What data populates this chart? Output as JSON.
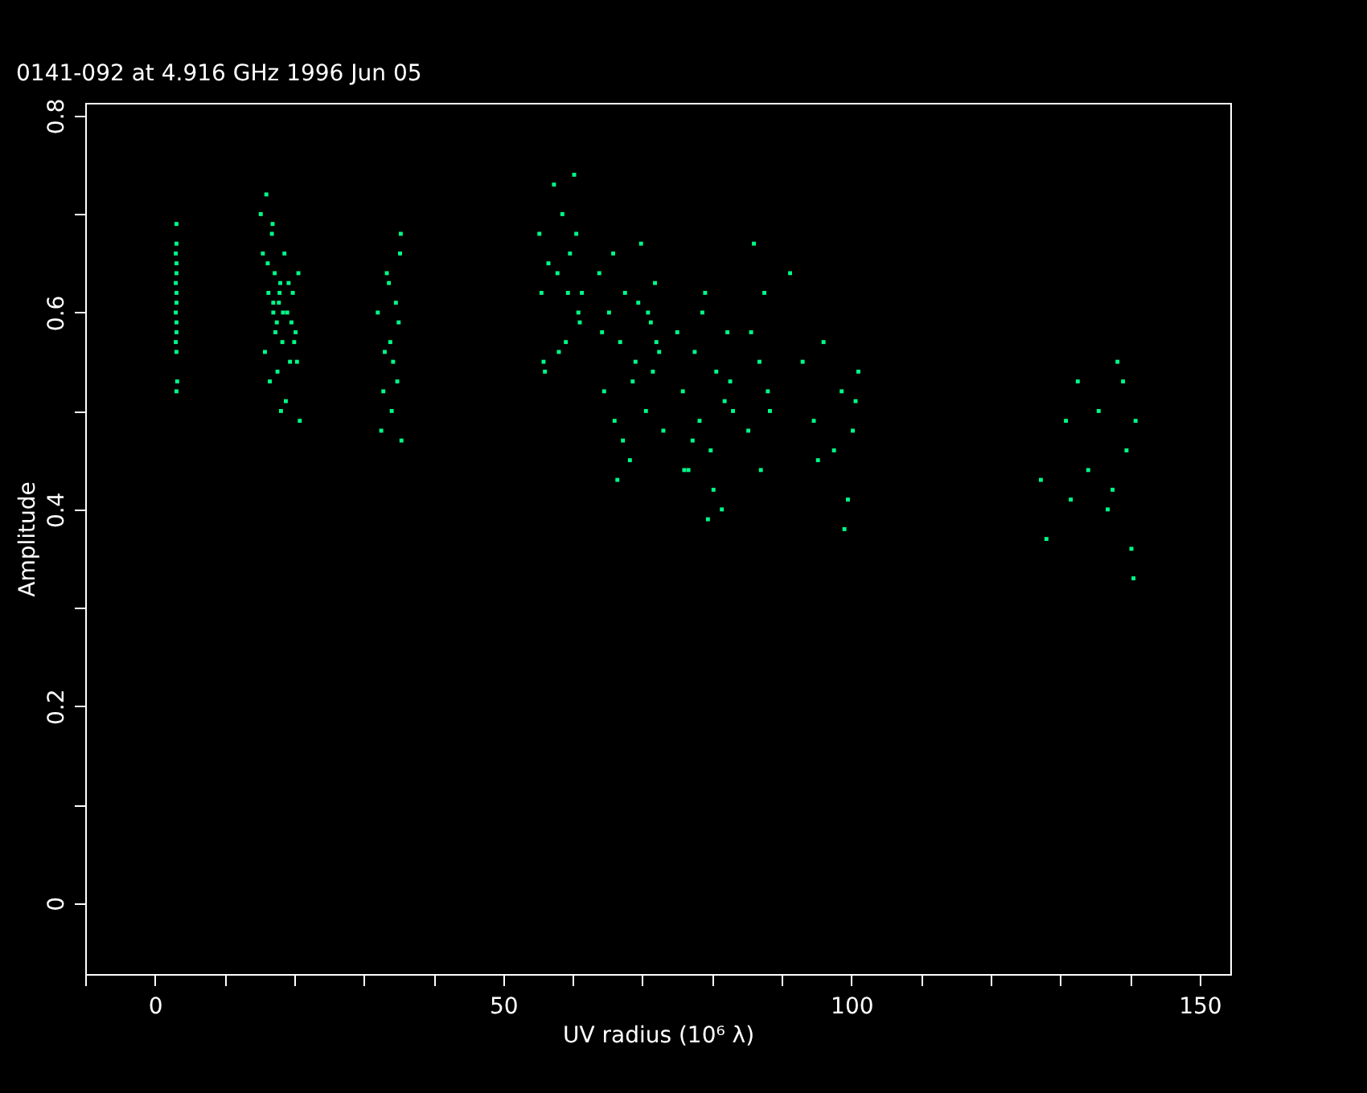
{
  "chart_data": {
    "type": "scatter",
    "title": "0141-092 at 4.916 GHz 1996 Jun 05",
    "xlabel": "UV radius  (10⁶ λ)",
    "ylabel": "Amplitude",
    "xlim": [
      -10,
      154.4
    ],
    "ylim": [
      -0.072,
      0.813
    ],
    "xticks": [
      {
        "value": -10,
        "label": null
      },
      0,
      {
        "value": 10,
        "label": null
      },
      {
        "value": 20,
        "label": null
      },
      {
        "value": 30,
        "label": null
      },
      {
        "value": 40,
        "label": null
      },
      50,
      {
        "value": 60,
        "label": null
      },
      {
        "value": 70,
        "label": null
      },
      {
        "value": 80,
        "label": null
      },
      {
        "value": 90,
        "label": null
      },
      100,
      {
        "value": 110,
        "label": null
      },
      {
        "value": 120,
        "label": null
      },
      {
        "value": 130,
        "label": null
      },
      {
        "value": 140,
        "label": null
      },
      150
    ],
    "yticks": [
      0,
      {
        "value": 0.1,
        "label": null
      },
      0.2,
      {
        "value": 0.3,
        "label": null
      },
      0.4,
      {
        "value": 0.5,
        "label": null
      },
      0.6,
      {
        "value": 0.7,
        "label": null
      },
      0.8
    ],
    "marker": "square",
    "series": [
      {
        "color": "#00ff88",
        "x": [
          3.1,
          3.1,
          3.0,
          3.1,
          3.1,
          3.0,
          3.1,
          3.1,
          3.0,
          3.1,
          3.1,
          3.0,
          3.1,
          3.1,
          3.2,
          15.2,
          15.5,
          16.0,
          16.3,
          16.8,
          17.0,
          17.2,
          17.5,
          17.8,
          18.0,
          18.3,
          18.6,
          19.0,
          19.4,
          19.8,
          20.2,
          20.6,
          15.8,
          16.5,
          17.3,
          17.9,
          18.8,
          19.6,
          20.4,
          16.2,
          17.0,
          18.4,
          19.2,
          20.0,
          17.6,
          18.1,
          16.9,
          20.8,
          32.0,
          32.8,
          33.3,
          33.8,
          34.2,
          34.6,
          35.0,
          35.3,
          32.5,
          33.6,
          34.8,
          35.2,
          33.0,
          34.0,
          35.4,
          55.2,
          55.5,
          56.0,
          57.3,
          57.8,
          58.5,
          59.0,
          59.6,
          60.2,
          60.8,
          61.3,
          56.5,
          58.0,
          59.3,
          60.5,
          61.0,
          55.8,
          63.8,
          64.5,
          65.2,
          66.0,
          66.8,
          67.5,
          68.2,
          69.0,
          69.8,
          70.5,
          71.2,
          71.8,
          72.4,
          73.0,
          64.2,
          66.4,
          68.6,
          70.8,
          72.0,
          65.8,
          67.2,
          69.4,
          71.5,
          75.0,
          75.8,
          76.6,
          77.5,
          78.2,
          79.0,
          79.8,
          80.6,
          81.4,
          82.2,
          83.0,
          76.0,
          78.6,
          80.2,
          81.8,
          77.2,
          82.6,
          79.4,
          85.2,
          86.0,
          86.8,
          87.5,
          88.3,
          85.6,
          87.0,
          88.0,
          91.2,
          93.0,
          94.6,
          96.0,
          97.5,
          98.6,
          99.5,
          100.2,
          101.0,
          95.2,
          99.0,
          100.6,
          127.2,
          128.0,
          130.8,
          132.5,
          134.0,
          135.5,
          136.8,
          138.2,
          139.5,
          140.2,
          140.8,
          137.5,
          139.0,
          131.5,
          140.5
        ],
        "values": [
          0.69,
          0.67,
          0.66,
          0.65,
          0.64,
          0.63,
          0.62,
          0.61,
          0.6,
          0.59,
          0.58,
          0.57,
          0.56,
          0.52,
          0.53,
          0.7,
          0.66,
          0.72,
          0.62,
          0.68,
          0.6,
          0.64,
          0.59,
          0.61,
          0.63,
          0.57,
          0.66,
          0.6,
          0.55,
          0.62,
          0.58,
          0.64,
          0.56,
          0.53,
          0.58,
          0.62,
          0.51,
          0.59,
          0.55,
          0.65,
          0.61,
          0.6,
          0.63,
          0.57,
          0.54,
          0.5,
          0.69,
          0.49,
          0.6,
          0.52,
          0.64,
          0.57,
          0.55,
          0.61,
          0.59,
          0.68,
          0.48,
          0.63,
          0.53,
          0.66,
          0.56,
          0.5,
          0.47,
          0.68,
          0.62,
          0.54,
          0.73,
          0.64,
          0.7,
          0.57,
          0.66,
          0.74,
          0.6,
          0.62,
          0.65,
          0.56,
          0.62,
          0.68,
          0.59,
          0.55,
          0.64,
          0.52,
          0.6,
          0.49,
          0.57,
          0.62,
          0.45,
          0.55,
          0.67,
          0.5,
          0.59,
          0.63,
          0.56,
          0.48,
          0.58,
          0.43,
          0.53,
          0.6,
          0.57,
          0.66,
          0.47,
          0.61,
          0.54,
          0.58,
          0.52,
          0.44,
          0.56,
          0.49,
          0.62,
          0.46,
          0.54,
          0.4,
          0.58,
          0.5,
          0.44,
          0.6,
          0.42,
          0.51,
          0.47,
          0.53,
          0.39,
          0.48,
          0.67,
          0.55,
          0.62,
          0.5,
          0.58,
          0.44,
          0.52,
          0.64,
          0.55,
          0.49,
          0.57,
          0.46,
          0.52,
          0.41,
          0.48,
          0.54,
          0.45,
          0.38,
          0.51,
          0.43,
          0.37,
          0.49,
          0.53,
          0.44,
          0.5,
          0.4,
          0.55,
          0.46,
          0.36,
          0.49,
          0.42,
          0.53,
          0.41,
          0.33
        ]
      }
    ]
  }
}
